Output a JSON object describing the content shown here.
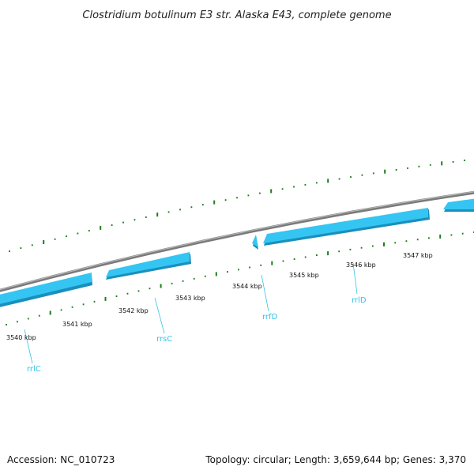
{
  "title": "Clostridium botulinum E3 str. Alaska E43, complete genome",
  "footer": {
    "accession": "Accession: NC_010723",
    "summary": "Topology: circular; Length: 3,659,644 bp; Genes: 3,370"
  },
  "colors": {
    "backbone": "#7a7a7a",
    "gene": "#35c5f2",
    "gene_dark": "#1a8fbd",
    "tick": "#1a7f1a",
    "gene_label": "#33c2e6"
  },
  "tick_labels": [
    "3540 kbp",
    "3541 kbp",
    "3542 kbp",
    "3543 kbp",
    "3544 kbp",
    "3545 kbp",
    "3546 kbp",
    "3547 kbp"
  ],
  "genes": [
    {
      "name": "rrlC"
    },
    {
      "name": "rrsC"
    },
    {
      "name": "rrfD"
    },
    {
      "name": "rrlD"
    }
  ]
}
